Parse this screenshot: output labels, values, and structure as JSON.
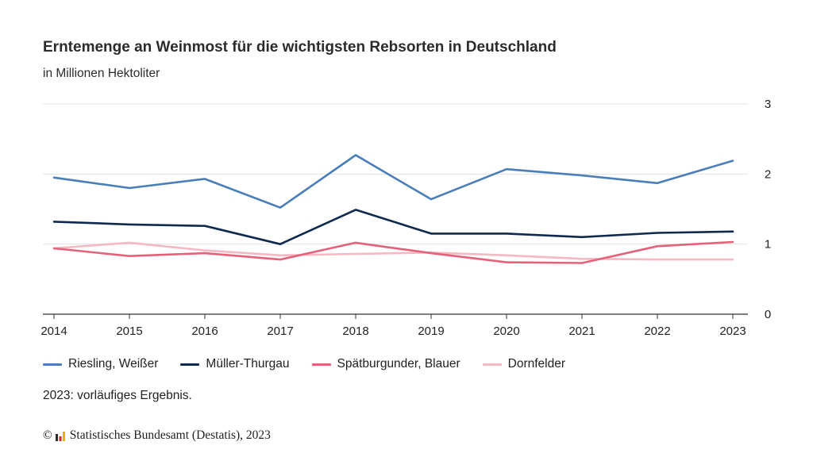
{
  "title": "Erntemenge an Weinmost für die wichtigsten Rebsorten in Deutschland",
  "subtitle": "in Millionen Hektoliter",
  "note": "2023: vorläufiges Ergebnis.",
  "source": {
    "copyright": "©",
    "text": "Statistisches Bundesamt (Destatis), 2023",
    "logo_icon": "destatis-logo-icon"
  },
  "chart_data": {
    "type": "line",
    "categories": [
      "2014",
      "2015",
      "2016",
      "2017",
      "2018",
      "2019",
      "2020",
      "2021",
      "2022",
      "2023"
    ],
    "y_ticks": [
      "0",
      "1",
      "2",
      "3"
    ],
    "ylim": [
      0,
      3
    ],
    "y_axis_position": "right",
    "grid": true,
    "legend_position": "bottom-left",
    "series": [
      {
        "name": "Riesling, Weißer",
        "color": "#4a7ebb",
        "values": [
          1.95,
          1.8,
          1.93,
          1.52,
          2.27,
          1.64,
          2.07,
          1.98,
          1.87,
          2.19
        ]
      },
      {
        "name": "Müller-Thurgau",
        "color": "#0e2a4f",
        "values": [
          1.32,
          1.28,
          1.26,
          1.0,
          1.49,
          1.15,
          1.15,
          1.1,
          1.16,
          1.18
        ]
      },
      {
        "name": "Spätburgunder, Blauer",
        "color": "#e5617a",
        "values": [
          0.94,
          0.83,
          0.87,
          0.78,
          1.02,
          0.87,
          0.74,
          0.73,
          0.97,
          1.03
        ]
      },
      {
        "name": "Dornfelder",
        "color": "#f6b8c3",
        "values": [
          0.94,
          1.02,
          0.91,
          0.84,
          0.86,
          0.88,
          0.84,
          0.79,
          0.78,
          0.78
        ]
      }
    ]
  }
}
